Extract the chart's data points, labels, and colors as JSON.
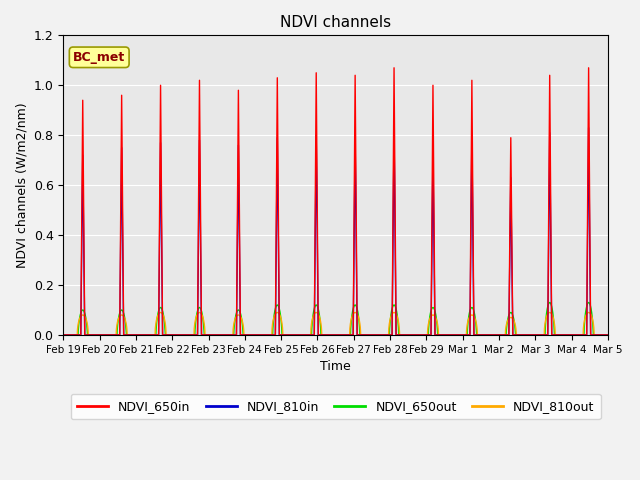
{
  "title": "NDVI channels",
  "xlabel": "Time",
  "ylabel": "NDVI channels (W/m2/nm)",
  "ylim": [
    0,
    1.2
  ],
  "annotation": "BC_met",
  "x_tick_labels": [
    "Feb 19",
    "Feb 20",
    "Feb 21",
    "Feb 22",
    "Feb 23",
    "Feb 24",
    "Feb 25",
    "Feb 26",
    "Feb 27",
    "Feb 28",
    "Feb 29",
    "Mar 1",
    "Mar 2",
    "Mar 3",
    "Mar 4",
    "Mar 5"
  ],
  "series": {
    "NDVI_650in": {
      "color": "#ff0000",
      "lw": 1.0
    },
    "NDVI_810in": {
      "color": "#0000cc",
      "lw": 1.0
    },
    "NDVI_650out": {
      "color": "#00dd00",
      "lw": 1.0
    },
    "NDVI_810out": {
      "color": "#ffaa00",
      "lw": 1.0
    }
  },
  "bg_color": "#e8e8e8",
  "grid_color": "#ffffff",
  "n_cycles": 14,
  "peaks_650in": [
    0.94,
    0.96,
    1.0,
    1.02,
    0.98,
    1.03,
    1.05,
    1.04,
    1.07,
    1.0,
    1.02,
    0.79,
    1.04,
    1.07
  ],
  "peaks_810in": [
    0.72,
    0.75,
    0.77,
    0.78,
    0.76,
    0.79,
    0.8,
    0.79,
    0.82,
    0.72,
    0.8,
    0.63,
    0.81,
    0.83
  ],
  "peaks_650out": [
    0.1,
    0.1,
    0.11,
    0.11,
    0.1,
    0.12,
    0.12,
    0.12,
    0.12,
    0.11,
    0.11,
    0.09,
    0.13,
    0.13
  ],
  "peaks_810out": [
    0.08,
    0.08,
    0.09,
    0.09,
    0.08,
    0.09,
    0.09,
    0.09,
    0.09,
    0.08,
    0.08,
    0.07,
    0.09,
    0.09
  ],
  "figsize": [
    6.4,
    4.8
  ],
  "dpi": 100
}
